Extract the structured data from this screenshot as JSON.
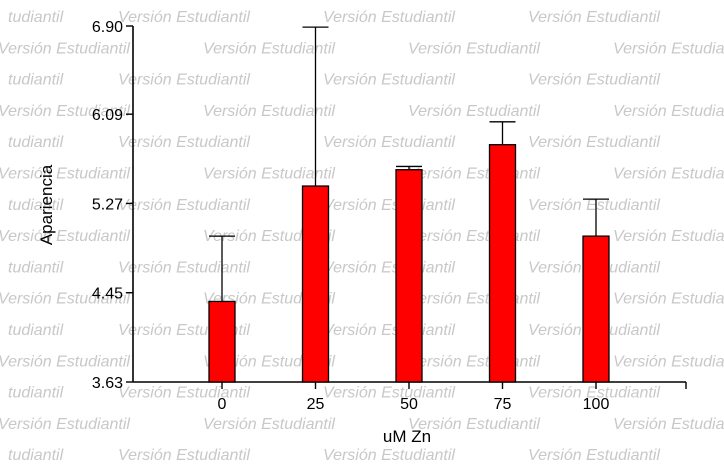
{
  "watermark": {
    "text_a": "Versión Estudiantil",
    "text_b": "tudiantil",
    "color": "#c8c8c8"
  },
  "chart_data": {
    "type": "bar",
    "categories": [
      "0",
      "25",
      "50",
      "75",
      "100"
    ],
    "values": [
      4.37,
      5.43,
      5.58,
      5.81,
      4.97
    ],
    "error_upper": [
      4.97,
      6.89,
      5.61,
      6.02,
      5.31
    ],
    "error_style": "upper-only",
    "xlabel": "uM Zn",
    "ylabel": "Apariencia",
    "ylim": [
      3.63,
      6.9
    ],
    "yticks": [
      "3.63",
      "4.45",
      "5.27",
      "6.09",
      "6.90"
    ],
    "bar_color": "#ff0000",
    "grid": false,
    "legend": "none"
  }
}
